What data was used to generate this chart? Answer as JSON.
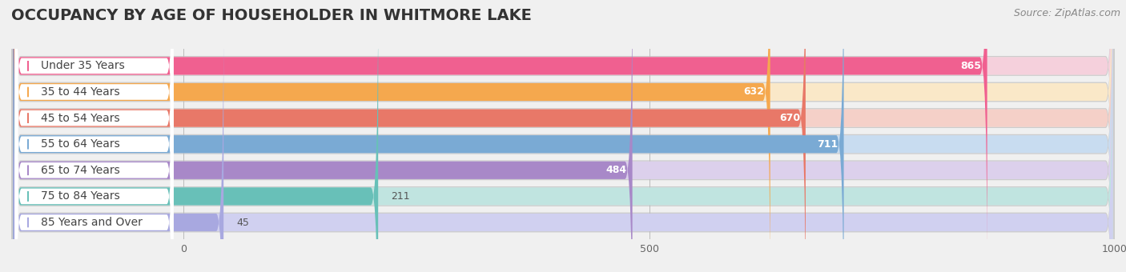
{
  "title": "OCCUPANCY BY AGE OF HOUSEHOLDER IN WHITMORE LAKE",
  "source": "Source: ZipAtlas.com",
  "categories": [
    "Under 35 Years",
    "35 to 44 Years",
    "45 to 54 Years",
    "55 to 64 Years",
    "65 to 74 Years",
    "75 to 84 Years",
    "85 Years and Over"
  ],
  "values": [
    865,
    632,
    670,
    711,
    484,
    211,
    45
  ],
  "bar_colors": [
    "#F06090",
    "#F5A84E",
    "#E87868",
    "#7AAAD4",
    "#A888C8",
    "#68C0B8",
    "#A8A8E0"
  ],
  "bar_bg_colors": [
    "#F5D0DC",
    "#FAE8C8",
    "#F5D0C8",
    "#C8DCF0",
    "#DCD0EC",
    "#C0E4E0",
    "#D0D0F0"
  ],
  "label_dot_colors": [
    "#F06090",
    "#F5A84E",
    "#E87868",
    "#7AAAD4",
    "#A888C8",
    "#68C0B8",
    "#A8A8E0"
  ],
  "xlim_max": 1000,
  "xticks": [
    0,
    500,
    1000
  ],
  "background_color": "#f0f0f0",
  "title_fontsize": 14,
  "source_fontsize": 9,
  "label_fontsize": 10,
  "value_fontsize": 9
}
